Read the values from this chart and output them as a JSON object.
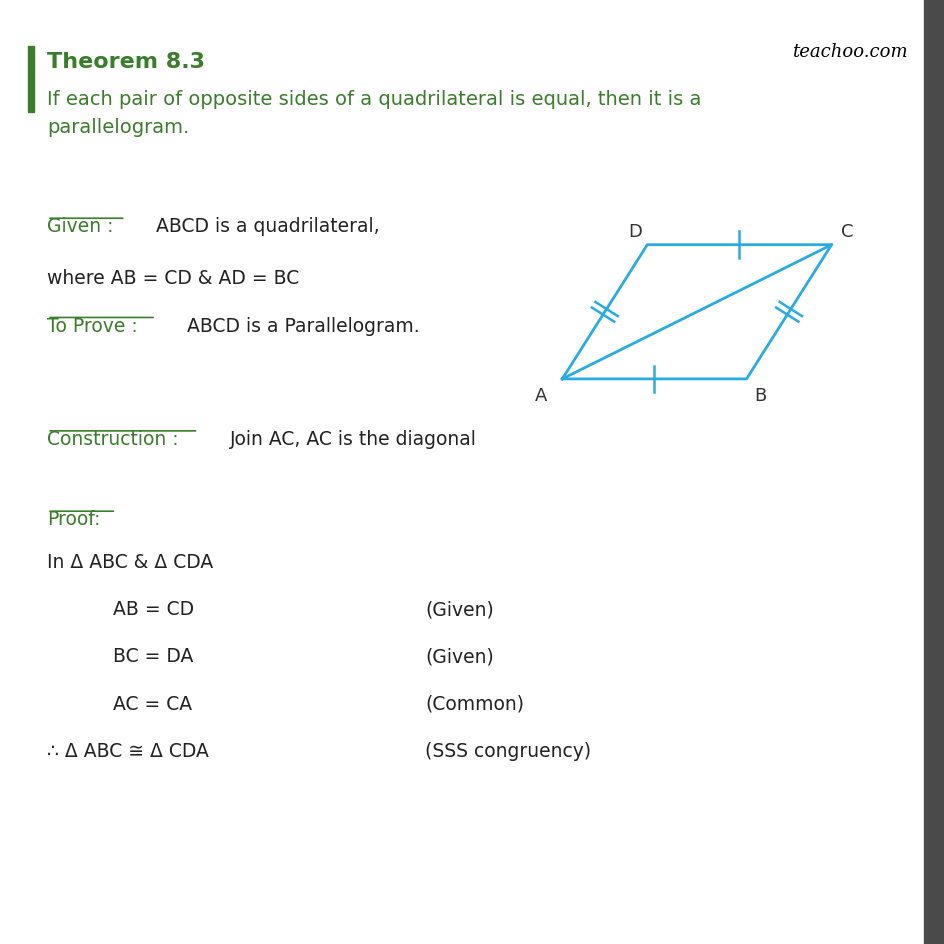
{
  "bg_color": "#ffffff",
  "right_bar_color": "#4a4a4a",
  "green_color": "#3a7d2c",
  "cyan_color": "#29ABE2",
  "title": "Theorem 8.3",
  "theorem_text": "If each pair of opposite sides of a quadrilateral is equal, then it is a\nparallelogram.",
  "given_label": "Given :",
  "given_text": "  ABCD is a quadrilateral,\nwhere AB = CD & AD = BC",
  "toprove_label": "To Prove :",
  "toprove_text": "  ABCD is a Parallelogram.",
  "construction_label": "Construction :",
  "construction_text": "  Join AC, AC is the diagonal",
  "proof_label": "Proof:",
  "proof_line1": "In Δ ABC & Δ CDA",
  "proof_items": [
    [
      "AB = CD",
      "(Given)"
    ],
    [
      "BC = DA",
      "(Given)"
    ],
    [
      "AC = CA",
      "(Common)"
    ]
  ],
  "proof_conclusion": [
    "∴ Δ ABC ≅ Δ CDA",
    "(SSS congruency)"
  ],
  "teachoo": "teachoo.com",
  "para_A": [
    0.18,
    0.18
  ],
  "para_B": [
    0.52,
    0.18
  ],
  "para_C": [
    0.65,
    0.52
  ],
  "para_D": [
    0.3,
    0.52
  ]
}
